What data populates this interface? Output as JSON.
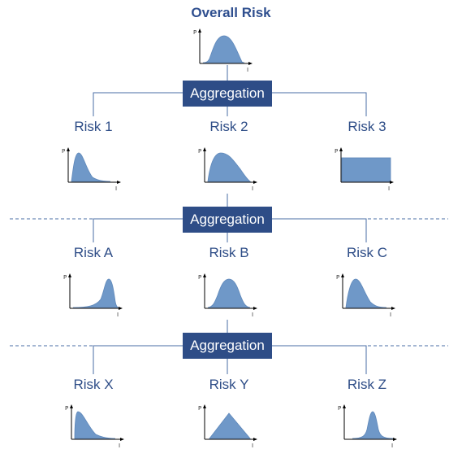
{
  "title": "Overall Risk",
  "aggregation_label": "Aggregation",
  "axis": {
    "y": "P",
    "x": "I"
  },
  "colors": {
    "fill": "#6f98c8",
    "stroke": "#5f88ba",
    "box": "#2e4d87",
    "line": "#4a6ea6"
  },
  "levels": [
    {
      "risks": [
        "Risk 1",
        "Risk 2",
        "Risk 3"
      ]
    },
    {
      "risks": [
        "Risk A",
        "Risk B",
        "Risk C"
      ]
    },
    {
      "risks": [
        "Risk X",
        "Risk Y",
        "Risk Z"
      ]
    }
  ]
}
